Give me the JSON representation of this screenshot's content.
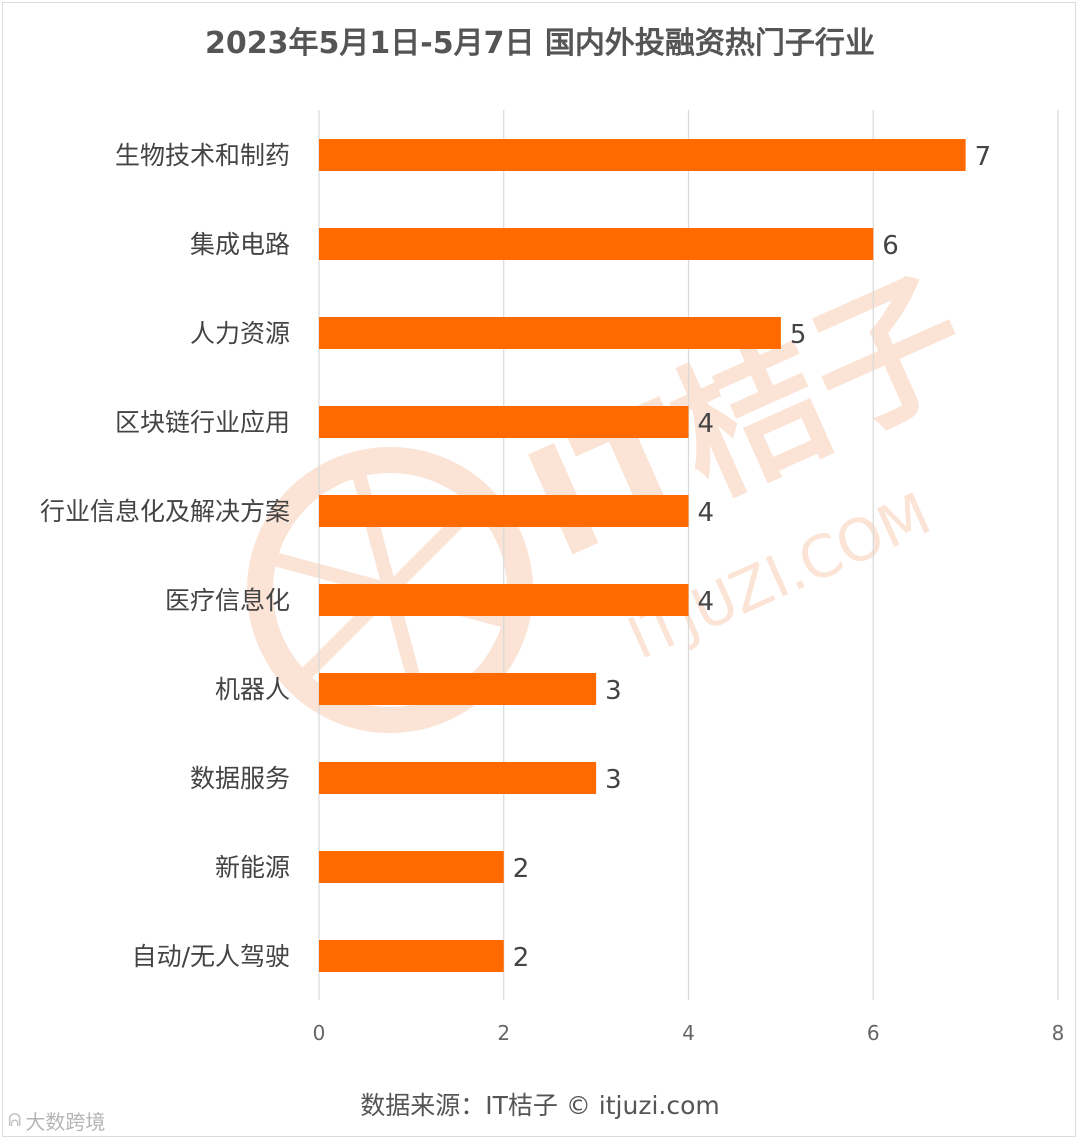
{
  "title": "2023年5月1日-5月7日 国内外投融资热门子行业",
  "source_text": "数据来源：IT桔子 © itjuzi.com",
  "watermark": {
    "brand": "IT桔子",
    "site": "ITJUZI.COM",
    "color": "#fbe3d6"
  },
  "corner_mark": {
    "icon": "weibo-logo-icon",
    "text": "大数跨境"
  },
  "colors": {
    "bar": "#ff6a00",
    "grid": "#d9d9d9",
    "text": "#444444"
  },
  "chart_data": {
    "type": "bar",
    "orientation": "horizontal",
    "title": "2023年5月1日-5月7日 国内外投融资热门子行业",
    "categories": [
      "生物技术和制药",
      "集成电路",
      "人力资源",
      "区块链行业应用",
      "行业信息化及解决方案",
      "医疗信息化",
      "机器人",
      "数据服务",
      "新能源",
      "自动/无人驾驶"
    ],
    "values": [
      7,
      6,
      5,
      4,
      4,
      4,
      3,
      3,
      2,
      2
    ],
    "xlim": [
      0,
      8
    ],
    "xticks": [
      0,
      2,
      4,
      6,
      8
    ],
    "grid": true,
    "legend": "none",
    "data_labels": true
  }
}
